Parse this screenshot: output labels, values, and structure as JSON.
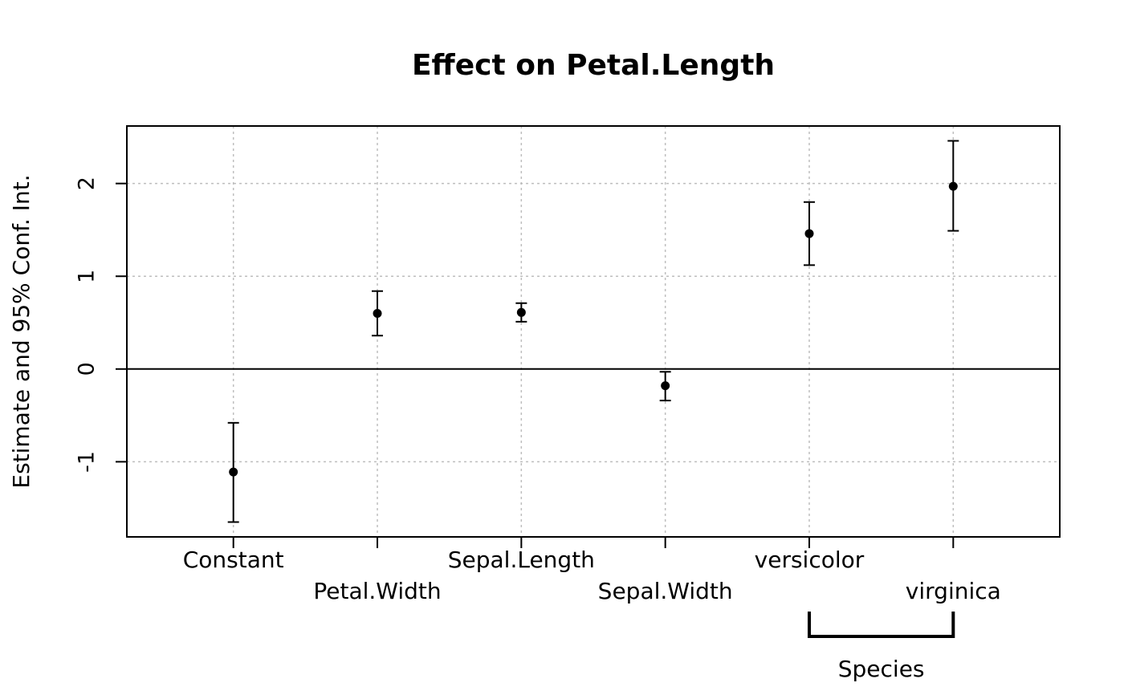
{
  "chart_data": {
    "type": "scatter",
    "title": "Effect on Petal.Length",
    "xlabel": "",
    "ylabel": "Estimate and 95% Conf. Int.",
    "ylim": [
      -1.81,
      2.62
    ],
    "xlim": [
      0.26,
      6.74
    ],
    "yticks": [
      -1,
      0,
      1,
      2
    ],
    "grid": true,
    "reference_line": 0,
    "categories": [
      "Constant",
      "Petal.Width",
      "Sepal.Length",
      "Sepal.Width",
      "versicolor",
      "virginica"
    ],
    "estimates": [
      -1.11,
      0.6,
      0.61,
      -0.18,
      1.46,
      1.97
    ],
    "lower": [
      -1.65,
      0.36,
      0.51,
      -0.34,
      1.12,
      1.49
    ],
    "upper": [
      -0.58,
      0.84,
      0.71,
      -0.03,
      1.8,
      2.46
    ],
    "groups": [
      {
        "label": "Species",
        "members": [
          "versicolor",
          "virginica"
        ]
      }
    ],
    "colors": {
      "points": "#000000",
      "grid": "#bebebe"
    }
  }
}
